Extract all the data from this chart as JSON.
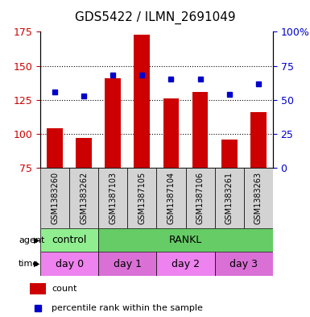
{
  "title": "GDS5422 / ILMN_2691049",
  "samples": [
    "GSM1383260",
    "GSM1383262",
    "GSM1387103",
    "GSM1387105",
    "GSM1387104",
    "GSM1387106",
    "GSM1383261",
    "GSM1383263"
  ],
  "counts": [
    104,
    97,
    141,
    173,
    126,
    131,
    96,
    116
  ],
  "percentile_ranks": [
    56,
    53,
    68,
    68,
    65,
    65,
    54,
    62
  ],
  "ymin": 75,
  "ymax": 175,
  "yticks_left": [
    75,
    100,
    125,
    150,
    175
  ],
  "yticks_right": [
    0,
    25,
    50,
    75,
    100
  ],
  "ytick_right_labels": [
    "0",
    "25",
    "50",
    "75",
    "100%"
  ],
  "bar_color": "#cc0000",
  "dot_color": "#0000cc",
  "agent_groups": [
    {
      "label": "control",
      "span": [
        0,
        2
      ],
      "color": "#90ee90"
    },
    {
      "label": "RANKL",
      "span": [
        2,
        8
      ],
      "color": "#66cc66"
    }
  ],
  "time_groups": [
    {
      "label": "day 0",
      "span": [
        0,
        2
      ],
      "color": "#ee82ee"
    },
    {
      "label": "day 1",
      "span": [
        2,
        4
      ],
      "color": "#da70d6"
    },
    {
      "label": "day 2",
      "span": [
        4,
        6
      ],
      "color": "#ee82ee"
    },
    {
      "label": "day 3",
      "span": [
        6,
        8
      ],
      "color": "#da70d6"
    }
  ],
  "sample_bg_color": "#d3d3d3",
  "left_label_color": "#cc0000",
  "right_label_color": "#0000cc",
  "legend_items": [
    {
      "label": "count",
      "color": "#cc0000",
      "type": "rect"
    },
    {
      "label": "percentile rank within the sample",
      "color": "#0000cc",
      "type": "square"
    }
  ]
}
